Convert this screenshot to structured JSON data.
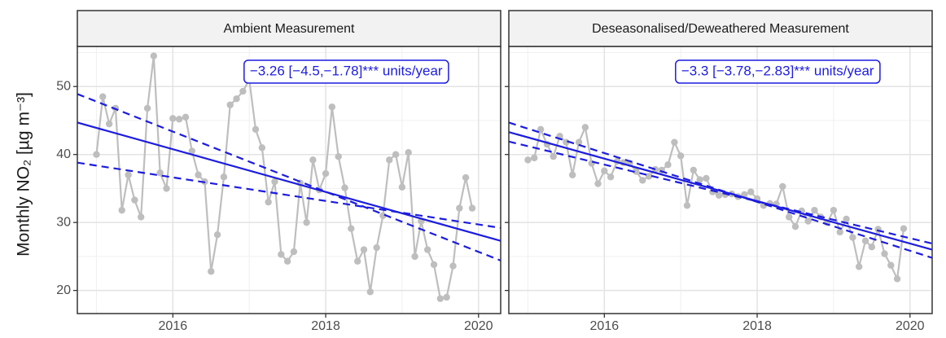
{
  "y_label": "Monthly NO₂ [µg m⁻³]",
  "chart_data": [
    {
      "type": "line",
      "title": "Ambient Measurement",
      "annotation": "−3.26 [−4.5,−1.78]*** units/year",
      "x": [
        2015,
        2015.083,
        2015.167,
        2015.25,
        2015.333,
        2015.417,
        2015.5,
        2015.583,
        2015.667,
        2015.75,
        2015.833,
        2015.917,
        2016,
        2016.083,
        2016.167,
        2016.25,
        2016.333,
        2016.417,
        2016.5,
        2016.583,
        2016.667,
        2016.75,
        2016.833,
        2016.917,
        2017,
        2017.083,
        2017.167,
        2017.25,
        2017.333,
        2017.417,
        2017.5,
        2017.583,
        2017.667,
        2017.75,
        2017.833,
        2017.917,
        2018,
        2018.083,
        2018.167,
        2018.25,
        2018.333,
        2018.417,
        2018.5,
        2018.583,
        2018.667,
        2018.75,
        2018.833,
        2018.917,
        2019,
        2019.083,
        2019.167,
        2019.25,
        2019.333,
        2019.417,
        2019.5,
        2019.583,
        2019.667,
        2019.75,
        2019.833,
        2019.917
      ],
      "series": [
        {
          "color": "#bebebe",
          "markers": true,
          "values": [
            40,
            48.5,
            44.5,
            46.8,
            31.8,
            37,
            33.3,
            30.8,
            46.8,
            54.5,
            37.3,
            35,
            45.3,
            45.2,
            45.5,
            40.5,
            37,
            36,
            22.8,
            28.2,
            36.7,
            47.3,
            48.2,
            49.3,
            51,
            43.7,
            41,
            33,
            36,
            25.3,
            24.3,
            25.7,
            35.8,
            30,
            39.2,
            34.8,
            37.2,
            47,
            39.7,
            35.1,
            29.1,
            24.3,
            26,
            19.8,
            26.3,
            31,
            39.2,
            40,
            35.2,
            40.3,
            25,
            30.2,
            26,
            23.8,
            18.8,
            19,
            23.6,
            32.1,
            36.6,
            32.1
          ]
        },
        {
          "color": "#1c1ce0",
          "dash": false,
          "x": [
            2014.75,
            2020.29
          ],
          "values": [
            44.7,
            27.3
          ]
        },
        {
          "color": "#1c1ce0",
          "dash": true,
          "x": [
            2014.75,
            2020.29
          ],
          "values": [
            48.9,
            24.4
          ]
        },
        {
          "color": "#1c1ce0",
          "dash": true,
          "x": [
            2014.75,
            2020.29
          ],
          "values": [
            38.8,
            29.2
          ]
        }
      ],
      "xlim": [
        2014.75,
        2020.29
      ],
      "ylim": [
        16.6,
        55.9
      ],
      "xticks": [
        2016,
        2018,
        2020
      ],
      "yticks": [
        20,
        30,
        40,
        50
      ],
      "xminor": [
        2015,
        2017,
        2019
      ],
      "yminor": [
        25,
        35,
        45,
        55
      ],
      "grid": true
    },
    {
      "type": "line",
      "title": "Deseasonalised/Deweathered Measurement",
      "annotation": "−3.3 [−3.78,−2.83]*** units/year",
      "x": [
        2015,
        2015.083,
        2015.167,
        2015.25,
        2015.333,
        2015.417,
        2015.5,
        2015.583,
        2015.667,
        2015.75,
        2015.833,
        2015.917,
        2016,
        2016.083,
        2016.167,
        2016.25,
        2016.333,
        2016.417,
        2016.5,
        2016.583,
        2016.667,
        2016.75,
        2016.833,
        2016.917,
        2017,
        2017.083,
        2017.167,
        2017.25,
        2017.333,
        2017.417,
        2017.5,
        2017.583,
        2017.667,
        2017.75,
        2017.833,
        2017.917,
        2018,
        2018.083,
        2018.167,
        2018.25,
        2018.333,
        2018.417,
        2018.5,
        2018.583,
        2018.667,
        2018.75,
        2018.833,
        2018.917,
        2019,
        2019.083,
        2019.167,
        2019.25,
        2019.333,
        2019.417,
        2019.5,
        2019.583,
        2019.667,
        2019.75,
        2019.833,
        2019.917
      ],
      "series": [
        {
          "color": "#bebebe",
          "markers": true,
          "values": [
            39.2,
            39.5,
            43.7,
            41.5,
            39.7,
            42.7,
            41.8,
            37,
            41.8,
            44,
            38.7,
            35.7,
            37.6,
            36.7,
            39,
            38.8,
            38.7,
            37.5,
            36.2,
            36.8,
            37.8,
            37.7,
            38.5,
            41.8,
            39.8,
            32.5,
            37.7,
            36.3,
            36.5,
            34.5,
            34,
            34.1,
            34.2,
            33.8,
            34.1,
            34.5,
            33.5,
            32.5,
            32.8,
            32.7,
            35.3,
            30.8,
            29.4,
            31.7,
            30.2,
            31.8,
            30.8,
            30,
            31.8,
            28.6,
            30.5,
            27.8,
            23.5,
            27.3,
            26.4,
            29,
            25.4,
            23.7,
            21.7,
            29.1
          ]
        },
        {
          "color": "#1c1ce0",
          "dash": false,
          "x": [
            2014.75,
            2020.29
          ],
          "values": [
            43.3,
            26
          ]
        },
        {
          "color": "#1c1ce0",
          "dash": true,
          "x": [
            2014.75,
            2020.29
          ],
          "values": [
            44.7,
            24.8
          ]
        },
        {
          "color": "#1c1ce0",
          "dash": true,
          "x": [
            2014.75,
            2020.29
          ],
          "values": [
            41.9,
            26.9
          ]
        }
      ],
      "xlim": [
        2014.75,
        2020.29
      ],
      "ylim": [
        16.6,
        55.9
      ],
      "xticks": [
        2016,
        2018,
        2020
      ],
      "yticks": [
        20,
        30,
        40,
        50
      ],
      "xminor": [
        2015,
        2017,
        2019
      ],
      "yminor": [
        25,
        35,
        45,
        55
      ],
      "grid": true
    }
  ]
}
